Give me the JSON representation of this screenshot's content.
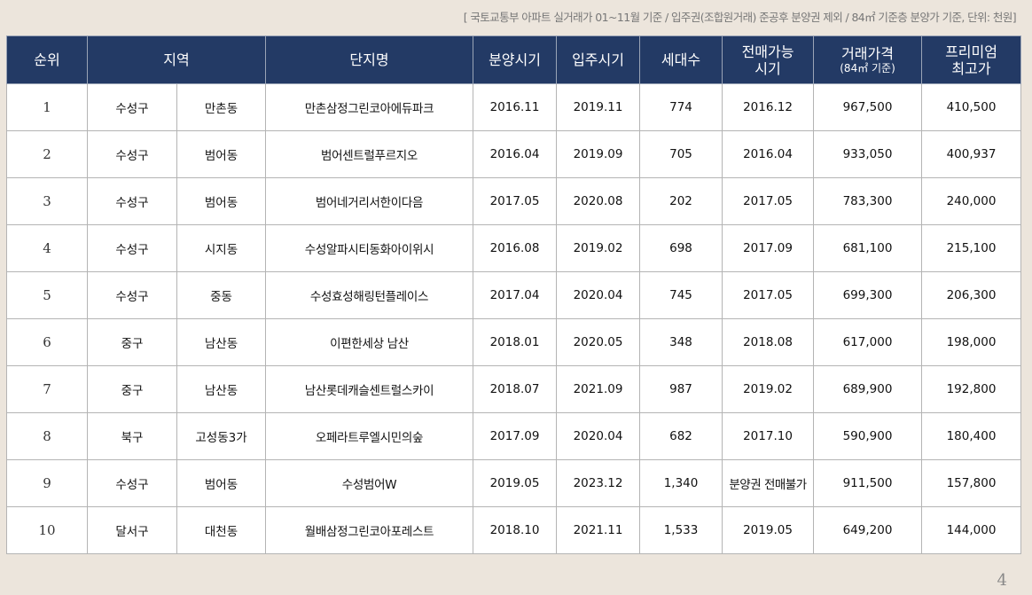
{
  "note": "[ 국토교통부 아파트 실거래가 01~11월 기준 / 입주권(조합원거래) 준공후 분양권 제외 / 84㎡ 기준층 분양가 기준, 단위: 천원]",
  "columns": {
    "rank": "순위",
    "region": "지역",
    "complex": "단지명",
    "sale_period": "분양시기",
    "move_in": "입주시기",
    "households": "세대수",
    "resale_line1": "전매가능",
    "resale_line2": "시기",
    "price": "거래가격",
    "price_sub": "(84㎡ 기준)",
    "premium_line1": "프리미엄",
    "premium_line2": "최고가"
  },
  "rows": [
    {
      "rank": "1",
      "district": "수성구",
      "dong": "만촌동",
      "complex": "만촌삼정그린코아에듀파크",
      "sale_period": "2016.11",
      "move_in": "2019.11",
      "households": "774",
      "resale": "2016.12",
      "price": "967,500",
      "premium": "410,500"
    },
    {
      "rank": "2",
      "district": "수성구",
      "dong": "범어동",
      "complex": "범어센트럴푸르지오",
      "sale_period": "2016.04",
      "move_in": "2019.09",
      "households": "705",
      "resale": "2016.04",
      "price": "933,050",
      "premium": "400,937"
    },
    {
      "rank": "3",
      "district": "수성구",
      "dong": "범어동",
      "complex": "범어네거리서한이다음",
      "sale_period": "2017.05",
      "move_in": "2020.08",
      "households": "202",
      "resale": "2017.05",
      "price": "783,300",
      "premium": "240,000"
    },
    {
      "rank": "4",
      "district": "수성구",
      "dong": "시지동",
      "complex": "수성알파시티동화아이위시",
      "sale_period": "2016.08",
      "move_in": "2019.02",
      "households": "698",
      "resale": "2017.09",
      "price": "681,100",
      "premium": "215,100"
    },
    {
      "rank": "5",
      "district": "수성구",
      "dong": "중동",
      "complex": "수성효성해링턴플레이스",
      "sale_period": "2017.04",
      "move_in": "2020.04",
      "households": "745",
      "resale": "2017.05",
      "price": "699,300",
      "premium": "206,300"
    },
    {
      "rank": "6",
      "district": "중구",
      "dong": "남산동",
      "complex": "이편한세상 남산",
      "sale_period": "2018.01",
      "move_in": "2020.05",
      "households": "348",
      "resale": "2018.08",
      "price": "617,000",
      "premium": "198,000"
    },
    {
      "rank": "7",
      "district": "중구",
      "dong": "남산동",
      "complex": "남산롯데캐슬센트럴스카이",
      "sale_period": "2018.07",
      "move_in": "2021.09",
      "households": "987",
      "resale": "2019.02",
      "price": "689,900",
      "premium": "192,800"
    },
    {
      "rank": "8",
      "district": "북구",
      "dong": "고성동3가",
      "complex": "오페라트루엘시민의숲",
      "sale_period": "2017.09",
      "move_in": "2020.04",
      "households": "682",
      "resale": "2017.10",
      "price": "590,900",
      "premium": "180,400"
    },
    {
      "rank": "9",
      "district": "수성구",
      "dong": "범어동",
      "complex": "수성범어W",
      "sale_period": "2019.05",
      "move_in": "2023.12",
      "households": "1,340",
      "resale": "분양권 전매불가",
      "price": "911,500",
      "premium": "157,800"
    },
    {
      "rank": "10",
      "district": "달서구",
      "dong": "대천동",
      "complex": "월배삼정그린코아포레스트",
      "sale_period": "2018.10",
      "move_in": "2021.11",
      "households": "1,533",
      "resale": "2019.05",
      "price": "649,200",
      "premium": "144,000"
    }
  ],
  "page_number": "4"
}
